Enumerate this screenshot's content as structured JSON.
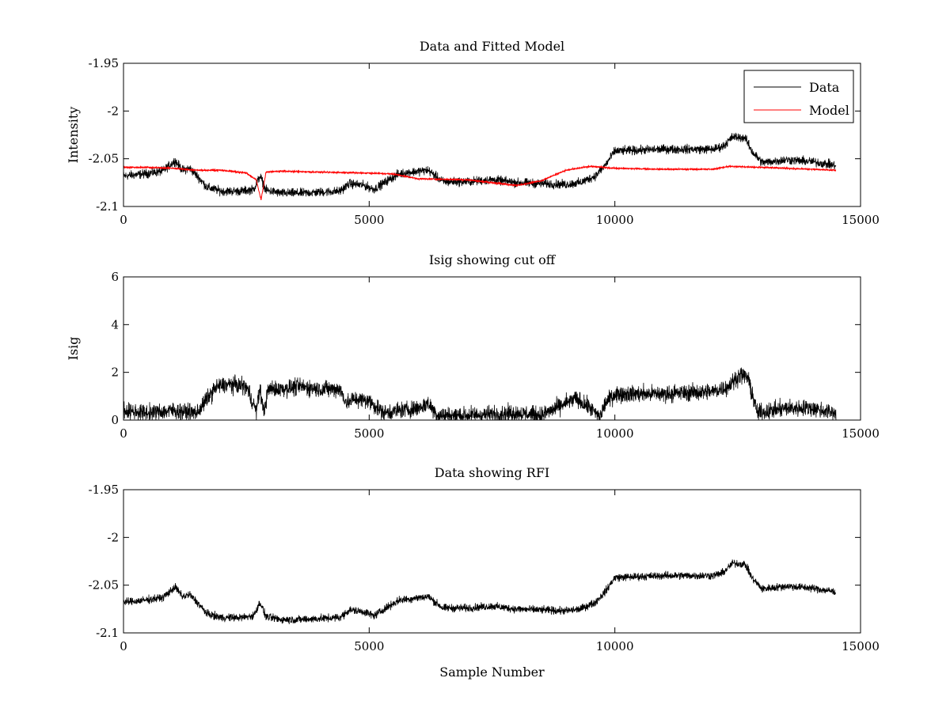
{
  "chart_data": [
    {
      "type": "line",
      "title": "Data and Fitted Model",
      "xlabel": "",
      "ylabel": "Intensity",
      "xlim": [
        0,
        15000
      ],
      "ylim": [
        -2.1,
        -1.95
      ],
      "xticks": [
        0,
        5000,
        10000,
        15000
      ],
      "yticks": [
        -1.95,
        -2,
        -2.05,
        -2.1
      ],
      "xtick_labels": [
        "0",
        "5000",
        "10000",
        "15000"
      ],
      "ytick_labels": [
        "-1.95",
        "-2",
        "-2.05",
        "-2.1"
      ],
      "legend": {
        "placement": "top-right",
        "entries": [
          "Data",
          "Model"
        ]
      },
      "grid": false,
      "series": [
        {
          "name": "Data",
          "color": "#000000",
          "noise": 0.004,
          "x": [
            0,
            400,
            800,
            1050,
            1200,
            1350,
            1500,
            1700,
            2000,
            2400,
            2650,
            2780,
            2900,
            3200,
            3600,
            4000,
            4400,
            4600,
            4900,
            5100,
            5400,
            5600,
            6000,
            6200,
            6500,
            7000,
            7500,
            8000,
            8500,
            9000,
            9300,
            9600,
            9800,
            10000,
            11000,
            12000,
            12200,
            12400,
            12650,
            12800,
            13000,
            13500,
            14000,
            14500
          ],
          "y": [
            -2.068,
            -2.066,
            -2.063,
            -2.052,
            -2.062,
            -2.06,
            -2.068,
            -2.08,
            -2.084,
            -2.084,
            -2.082,
            -2.068,
            -2.083,
            -2.086,
            -2.086,
            -2.085,
            -2.084,
            -2.076,
            -2.078,
            -2.082,
            -2.072,
            -2.066,
            -2.063,
            -2.062,
            -2.074,
            -2.074,
            -2.072,
            -2.075,
            -2.076,
            -2.077,
            -2.075,
            -2.068,
            -2.057,
            -2.042,
            -2.04,
            -2.04,
            -2.037,
            -2.027,
            -2.028,
            -2.043,
            -2.054,
            -2.051,
            -2.053,
            -2.057
          ]
        },
        {
          "name": "Model",
          "color": "#ff0000",
          "noise": 0.0006,
          "x": [
            0,
            500,
            1000,
            1500,
            2000,
            2500,
            2700,
            2800,
            2900,
            3200,
            4000,
            5000,
            5500,
            6000,
            7000,
            8000,
            8500,
            9000,
            9500,
            10000,
            11000,
            12000,
            12200,
            12300,
            13000,
            14500
          ],
          "y": [
            -2.059,
            -2.059,
            -2.06,
            -2.062,
            -2.062,
            -2.065,
            -2.072,
            -2.093,
            -2.064,
            -2.063,
            -2.064,
            -2.065,
            -2.066,
            -2.071,
            -2.072,
            -2.078,
            -2.073,
            -2.062,
            -2.058,
            -2.06,
            -2.061,
            -2.061,
            -2.059,
            -2.058,
            -2.059,
            -2.062
          ]
        }
      ]
    },
    {
      "type": "line",
      "title": "Isig showing cut off",
      "xlabel": "",
      "ylabel": "Isig",
      "xlim": [
        0,
        15000
      ],
      "ylim": [
        0,
        6
      ],
      "xticks": [
        0,
        5000,
        10000,
        15000
      ],
      "yticks": [
        6,
        4,
        2,
        0
      ],
      "xtick_labels": [
        "0",
        "5000",
        "10000",
        "15000"
      ],
      "ytick_labels": [
        "6",
        "4",
        "2",
        "0"
      ],
      "grid": false,
      "series": [
        {
          "color": "#000000",
          "noise": 0.3,
          "clip_min": 0,
          "x": [
            0,
            500,
            1000,
            1500,
            1700,
            1900,
            2200,
            2500,
            2700,
            2780,
            2850,
            2950,
            3200,
            3600,
            4000,
            4400,
            4550,
            4700,
            5000,
            5300,
            5600,
            6000,
            6200,
            6400,
            7000,
            8000,
            8500,
            8800,
            9200,
            9500,
            9700,
            9800,
            10000,
            11000,
            12000,
            12300,
            12550,
            12700,
            12900,
            13500,
            14000,
            14500
          ],
          "y": [
            0.4,
            0.3,
            0.4,
            0.3,
            0.9,
            1.4,
            1.5,
            1.4,
            0.4,
            1.3,
            0.3,
            1.3,
            1.3,
            1.4,
            1.3,
            1.3,
            0.7,
            0.9,
            0.8,
            0.3,
            0.4,
            0.5,
            0.7,
            0.2,
            0.2,
            0.3,
            0.2,
            0.5,
            0.9,
            0.5,
            0.1,
            0.7,
            1.1,
            1.1,
            1.2,
            1.4,
            1.9,
            1.8,
            0.3,
            0.5,
            0.5,
            0.3
          ]
        }
      ]
    },
    {
      "type": "line",
      "title": "Data showing RFI",
      "xlabel": "Sample Number",
      "ylabel": "",
      "xlim": [
        0,
        15000
      ],
      "ylim": [
        -2.1,
        -1.95
      ],
      "xticks": [
        0,
        5000,
        10000,
        15000
      ],
      "yticks": [
        -1.95,
        -2,
        -2.05,
        -2.1
      ],
      "xtick_labels": [
        "0",
        "5000",
        "10000",
        "15000"
      ],
      "ytick_labels": [
        "-1.95",
        "-2",
        "-2.05",
        "-2.1"
      ],
      "grid": false,
      "series": [
        {
          "color": "#000000",
          "noise": 0.0035,
          "x": [
            0,
            400,
            800,
            1050,
            1200,
            1350,
            1500,
            1700,
            2000,
            2400,
            2650,
            2780,
            2900,
            3200,
            3600,
            4000,
            4400,
            4600,
            4900,
            5100,
            5400,
            5600,
            6000,
            6200,
            6500,
            7000,
            7500,
            8000,
            8500,
            9000,
            9300,
            9600,
            9800,
            10000,
            11000,
            12000,
            12200,
            12400,
            12650,
            12800,
            13000,
            13500,
            14000,
            14500
          ],
          "y": [
            -2.068,
            -2.066,
            -2.063,
            -2.052,
            -2.062,
            -2.06,
            -2.068,
            -2.08,
            -2.084,
            -2.084,
            -2.082,
            -2.068,
            -2.083,
            -2.086,
            -2.086,
            -2.085,
            -2.084,
            -2.076,
            -2.078,
            -2.082,
            -2.072,
            -2.066,
            -2.063,
            -2.062,
            -2.074,
            -2.074,
            -2.072,
            -2.075,
            -2.076,
            -2.077,
            -2.075,
            -2.068,
            -2.057,
            -2.042,
            -2.04,
            -2.04,
            -2.037,
            -2.027,
            -2.028,
            -2.043,
            -2.054,
            -2.051,
            -2.053,
            -2.057
          ]
        }
      ]
    }
  ]
}
